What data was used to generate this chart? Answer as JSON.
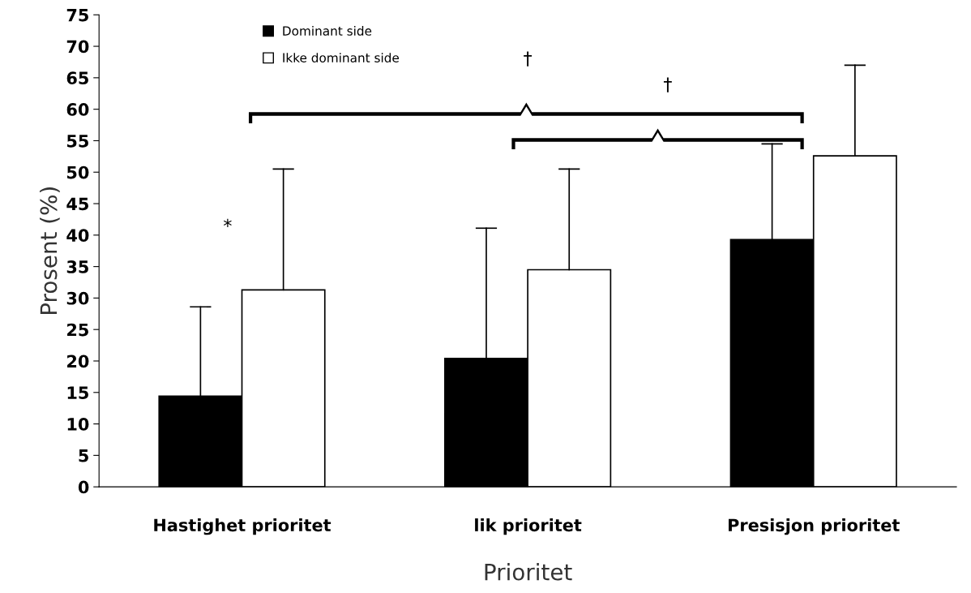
{
  "chart_data": {
    "type": "bar",
    "xlabel": "Prioritet",
    "ylabel": "Prosent (%)",
    "categories": [
      "Hastighet prioritet",
      "lik prioritet",
      "Presisjon prioritet"
    ],
    "series": [
      {
        "name": "Dominant side",
        "color": "#000000",
        "values": [
          14.4,
          20.4,
          39.3
        ],
        "errors": [
          [
            14.4,
            28.6
          ],
          [
            20.4,
            41.1
          ],
          [
            39.3,
            54.5
          ]
        ]
      },
      {
        "name": "Ikke dominant side",
        "color": "#ffffff",
        "values": [
          31.3,
          34.5,
          52.6
        ],
        "errors": [
          [
            31.3,
            50.5
          ],
          [
            34.5,
            50.5
          ],
          [
            52.6,
            67.0
          ]
        ]
      }
    ],
    "ylim": [
      0,
      75
    ],
    "yticks": [
      0,
      5,
      10,
      15,
      20,
      25,
      30,
      35,
      40,
      45,
      50,
      55,
      60,
      65,
      70,
      75
    ],
    "annotations": [
      "*",
      "†",
      "†"
    ],
    "grid": false,
    "legend": "top",
    "marker": "square"
  }
}
